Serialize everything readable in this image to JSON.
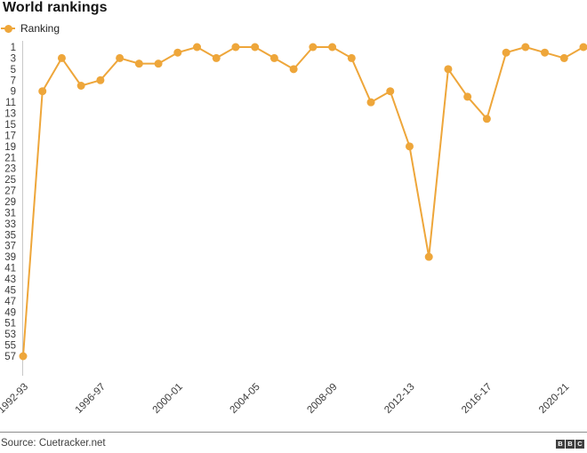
{
  "title": "World rankings",
  "legend": {
    "label": "Ranking"
  },
  "footer": {
    "source": "Source: Cuetracker.net",
    "logo_letters": {
      "b1": "B",
      "b2": "B",
      "b3": "C"
    }
  },
  "colors": {
    "accent": "#EEA63A",
    "axis_text": "#3a3a3a",
    "spine": "#c8c8c8",
    "divider": "#8c8c8c",
    "title_text": "#141414",
    "logo_bg": "#404040"
  },
  "chart_data": {
    "type": "line",
    "title": "World rankings",
    "x": [
      "1992-93",
      "1993-94",
      "1994-95",
      "1995-96",
      "1996-97",
      "1997-98",
      "1998-99",
      "1999-00",
      "2000-01",
      "2001-02",
      "2002-03",
      "2003-04",
      "2004-05",
      "2005-06",
      "2006-07",
      "2007-08",
      "2008-09",
      "2009-10",
      "2010-11",
      "2011-12",
      "2012-13",
      "2013-14",
      "2014-15",
      "2015-16",
      "2016-17",
      "2017-18",
      "2018-19",
      "2019-20",
      "2020-21",
      "2021-22"
    ],
    "series": [
      {
        "name": "Ranking",
        "values": [
          57,
          9,
          3,
          8,
          7,
          3,
          4,
          4,
          2,
          1,
          3,
          1,
          1,
          3,
          5,
          1,
          1,
          3,
          11,
          9,
          19,
          39,
          5,
          10,
          14,
          2,
          1,
          2,
          3,
          1
        ]
      }
    ],
    "x_tick_labels": [
      "1992-93",
      "1996-97",
      "2000-01",
      "2004-05",
      "2008-09",
      "2012-13",
      "2016-17",
      "2020-21"
    ],
    "y_ticks": [
      1,
      3,
      5,
      7,
      9,
      11,
      13,
      15,
      17,
      19,
      21,
      23,
      25,
      27,
      29,
      31,
      33,
      35,
      37,
      39,
      41,
      43,
      45,
      47,
      49,
      51,
      53,
      55,
      57
    ],
    "ylim": [
      1,
      57
    ],
    "y_axis_inverted": true,
    "grid": false,
    "legend_position": "top-left",
    "xlabel": "",
    "ylabel": ""
  }
}
